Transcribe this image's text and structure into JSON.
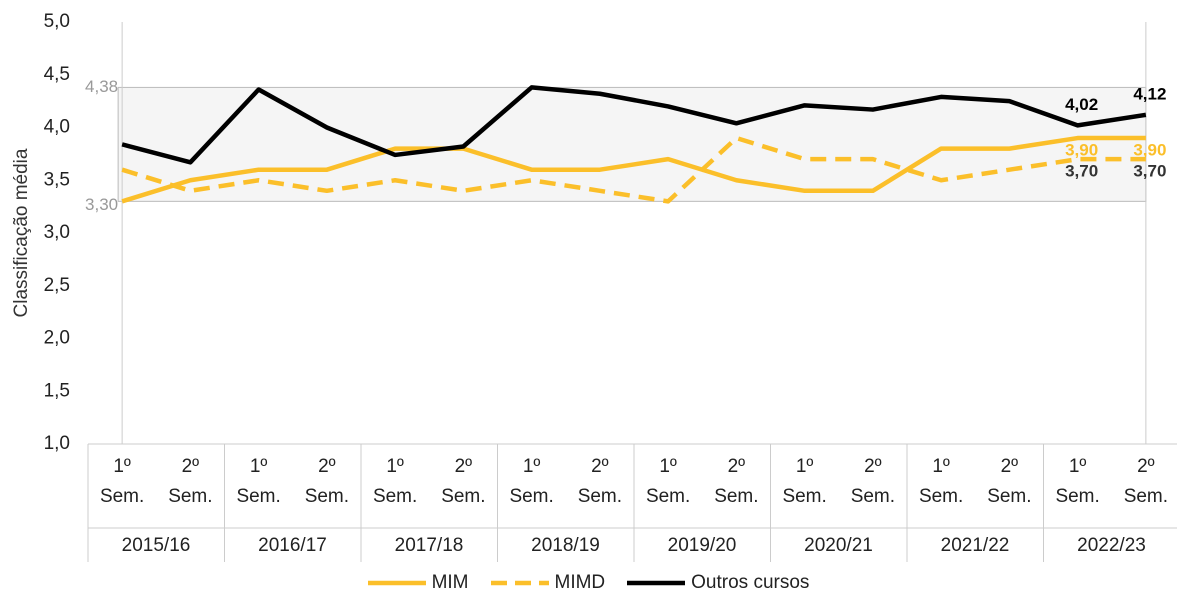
{
  "chart_data": {
    "type": "line",
    "y_label": "Classificação média",
    "categories": [
      "1º Sem.",
      "2º Sem.",
      "1º Sem.",
      "2º Sem.",
      "1º Sem.",
      "2º Sem.",
      "1º Sem.",
      "2º Sem.",
      "1º Sem.",
      "2º Sem.",
      "1º Sem.",
      "2º Sem.",
      "1º Sem.",
      "2º Sem.",
      "1º Sem.",
      "2º Sem."
    ],
    "groups": [
      "2015/16",
      "2016/17",
      "2017/18",
      "2018/19",
      "2019/20",
      "2020/21",
      "2021/22",
      "2022/23"
    ],
    "ylim": [
      1,
      5
    ],
    "yticks": [
      {
        "value": 1,
        "label": "1,0"
      },
      {
        "value": 1.5,
        "label": "1,5"
      },
      {
        "value": 2,
        "label": "2,0"
      },
      {
        "value": 2.5,
        "label": "2,5"
      },
      {
        "value": 3,
        "label": "3,0"
      },
      {
        "value": 3.5,
        "label": "3,5"
      },
      {
        "value": 4,
        "label": "4,0"
      },
      {
        "value": 4.5,
        "label": "4,5"
      },
      {
        "value": 5,
        "label": "5,0"
      }
    ],
    "reference_band": {
      "values": [
        3.3,
        4.38
      ],
      "value_labels": [
        "3,30",
        "4,38"
      ],
      "color": "#f5f5f5"
    },
    "series": [
      {
        "name": "MIM",
        "color": "#fbbf2a",
        "style": "solid",
        "values": [
          3.3,
          3.5,
          3.6,
          3.6,
          3.8,
          3.8,
          3.6,
          3.6,
          3.7,
          3.5,
          3.4,
          3.4,
          3.8,
          3.8,
          3.9,
          3.9
        ],
        "value_labels": [
          null,
          null,
          null,
          null,
          null,
          null,
          null,
          null,
          null,
          null,
          null,
          null,
          null,
          null,
          "3,90",
          "3,90"
        ]
      },
      {
        "name": "MIMD",
        "color": "#fbbf2a",
        "style": "dashed",
        "values": [
          3.6,
          3.4,
          3.5,
          3.4,
          3.5,
          3.4,
          3.5,
          3.4,
          3.3,
          3.9,
          3.7,
          3.7,
          3.5,
          3.6,
          3.7,
          3.7
        ],
        "value_labels": [
          null,
          null,
          null,
          null,
          null,
          null,
          null,
          null,
          null,
          null,
          null,
          null,
          null,
          null,
          "3,70",
          "3,70"
        ]
      },
      {
        "name": "Outros cursos",
        "color": "#000000",
        "style": "solid",
        "values": [
          3.84,
          3.67,
          4.36,
          4.0,
          3.74,
          3.82,
          4.38,
          4.32,
          4.2,
          4.04,
          4.21,
          4.17,
          4.29,
          4.25,
          4.02,
          4.12
        ],
        "value_labels": [
          null,
          null,
          null,
          null,
          null,
          null,
          null,
          null,
          null,
          null,
          null,
          null,
          null,
          null,
          "4,02",
          "4,12"
        ]
      }
    ]
  }
}
